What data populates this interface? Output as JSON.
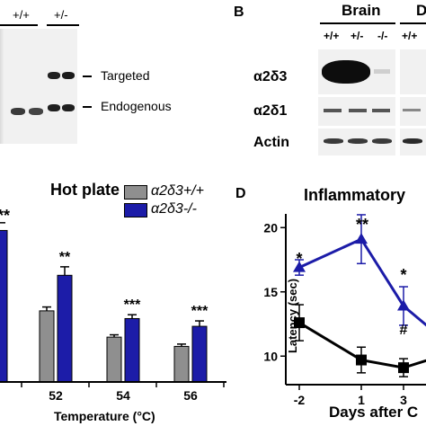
{
  "panel_a": {
    "lane_labels": [
      "+/+",
      "+/-"
    ],
    "band_labels": [
      "Targeted",
      "Endogenous"
    ]
  },
  "panel_b": {
    "letter": "B",
    "tissue_labels": [
      "Brain",
      "D"
    ],
    "genotypes": [
      "+/+",
      "+/-",
      "-/-",
      "+/+"
    ],
    "row_labels": [
      "α2δ3",
      "α2δ1",
      "Actin"
    ]
  },
  "panel_c": {
    "title": "Hot plate",
    "legend": [
      "α2δ3+/+",
      "α2δ3-/-"
    ],
    "xlabel": "Temperature (°C)"
  },
  "panel_d": {
    "letter": "D",
    "title": "Inflammatory",
    "ylabel": "Latency (sec)",
    "xlabel": "Days after C",
    "markers": [
      "*",
      "**",
      "*",
      "#"
    ]
  },
  "colors": {
    "blue": "#1c1ca8",
    "grey": "#8f8f8f",
    "black": "#000000"
  },
  "chart_data": [
    {
      "type": "bar",
      "title": "Hot plate",
      "xlabel": "Temperature (°C)",
      "ylabel": "",
      "categories": [
        "52",
        "54",
        "56"
      ],
      "series": [
        {
          "name": "α2δ3+/+",
          "values": [
            4.6,
            2.9,
            2.3
          ],
          "errors": [
            0.25,
            0.15,
            0.15
          ]
        },
        {
          "name": "α2δ3-/-",
          "values": [
            6.9,
            4.1,
            3.6
          ],
          "errors": [
            0.55,
            0.25,
            0.35
          ]
        }
      ],
      "significance": [
        "**",
        "***",
        "***"
      ],
      "ylim": [
        0,
        12
      ],
      "grid": false,
      "legend": "top-right"
    },
    {
      "type": "line",
      "title": "Inflammatory",
      "xlabel": "Days after C",
      "ylabel": "Latency (sec)",
      "x": [
        -2,
        1,
        3
      ],
      "series": [
        {
          "name": "",
          "color": "blue",
          "marker": "triangle",
          "values": [
            16.9,
            19.1,
            13.9
          ],
          "errors": [
            0.6,
            1.9,
            1.5
          ]
        },
        {
          "name": "",
          "color": "black",
          "marker": "square",
          "values": [
            12.6,
            9.7,
            9.1
          ],
          "errors": [
            1.4,
            1.0,
            0.7
          ]
        }
      ],
      "yticks": [
        10,
        15,
        20
      ],
      "xticks": [
        -2,
        1,
        3
      ],
      "ylim": [
        7.5,
        22
      ],
      "grid": false
    }
  ]
}
